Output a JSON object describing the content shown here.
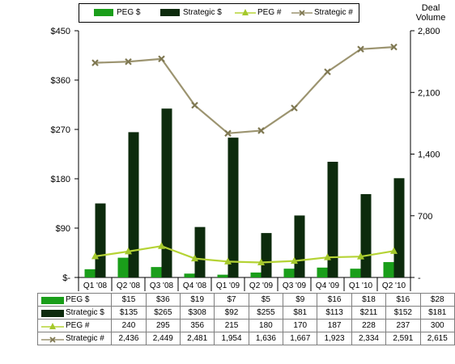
{
  "chart_data": {
    "type": "bar",
    "categories": [
      "Q1 '08",
      "Q2 '08",
      "Q3 '08",
      "Q4 '08",
      "Q1 '09",
      "Q2 '09",
      "Q3 '09",
      "Q4 '09",
      "Q1 '10",
      "Q2 '10"
    ],
    "series": [
      {
        "name": "PEG $",
        "type": "bar",
        "axis": "left",
        "color": "#1a9e1a",
        "values": [
          15,
          36,
          19,
          7,
          5,
          9,
          16,
          18,
          16,
          28
        ],
        "labels": [
          "$15",
          "$36",
          "$19",
          "$7",
          "$5",
          "$9",
          "$16",
          "$18",
          "$16",
          "$28"
        ]
      },
      {
        "name": "Strategic $",
        "type": "bar",
        "axis": "left",
        "color": "#0d2b0d",
        "values": [
          135,
          265,
          308,
          92,
          255,
          81,
          113,
          211,
          152,
          181
        ],
        "labels": [
          "$135",
          "$265",
          "$308",
          "$92",
          "$255",
          "$81",
          "$113",
          "$211",
          "$152",
          "$181"
        ]
      },
      {
        "name": "PEG #",
        "type": "line",
        "axis": "right",
        "color": "#b5d335",
        "marker": "triangle",
        "values": [
          240,
          295,
          356,
          215,
          180,
          170,
          187,
          228,
          237,
          300
        ],
        "labels": [
          "240",
          "295",
          "356",
          "215",
          "180",
          "170",
          "187",
          "228",
          "237",
          "300"
        ]
      },
      {
        "name": "Strategic #",
        "type": "line",
        "axis": "right",
        "color": "#9c9470",
        "marker": "x",
        "values": [
          2436,
          2449,
          2481,
          1954,
          1636,
          1667,
          1923,
          2334,
          2591,
          2615
        ],
        "labels": [
          "2,436",
          "2,449",
          "2,481",
          "1,954",
          "1,636",
          "1,667",
          "1,923",
          "2,334",
          "2,591",
          "2,615"
        ]
      }
    ],
    "y_left": {
      "ticks": [
        0,
        90,
        180,
        270,
        360,
        450
      ],
      "tick_labels": [
        "$-",
        "$90",
        "$180",
        "$270",
        "$360",
        "$450"
      ],
      "ylim": [
        0,
        450
      ]
    },
    "y_right": {
      "title_lines": [
        "Deal",
        "Volume"
      ],
      "ticks": [
        0,
        700,
        1400,
        2100,
        2800
      ],
      "tick_labels": [
        "-",
        "700",
        "1,400",
        "2,100",
        "2,800"
      ],
      "ylim": [
        0,
        2800
      ]
    },
    "legend_position": "top",
    "grid": false,
    "data_table": true
  }
}
